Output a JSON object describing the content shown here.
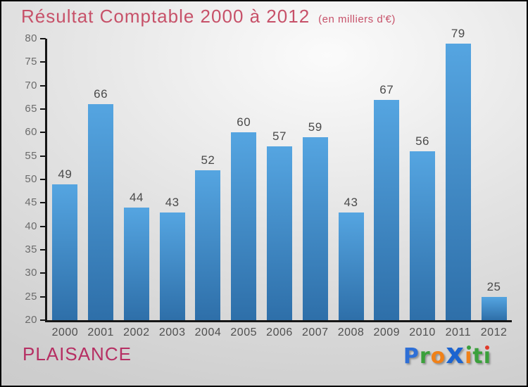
{
  "header": {
    "title": "Résultat Comptable 2000 à 2012",
    "subtitle": "(en milliers d'€)"
  },
  "chart_data": {
    "type": "bar",
    "categories": [
      "2000",
      "2001",
      "2002",
      "2003",
      "2004",
      "2005",
      "2006",
      "2007",
      "2008",
      "2009",
      "2010",
      "2011",
      "2012"
    ],
    "values": [
      49,
      66,
      44,
      43,
      52,
      60,
      57,
      59,
      43,
      67,
      56,
      79,
      25
    ],
    "title": "Résultat Comptable 2000 à 2012",
    "subtitle": "(en milliers d'€)",
    "xlabel": "",
    "ylabel": "",
    "ylim": [
      20,
      80
    ],
    "ytick_step": 5,
    "grid": false,
    "legend": "none",
    "value_labels_shown": true,
    "bar_gradient_top": "#55a5e1",
    "bar_gradient_bottom": "#2e6fa9"
  },
  "footer": {
    "location": "PLAISANCE",
    "logo": {
      "name": "Proxiti",
      "letters": [
        {
          "ch": "P",
          "color": "#2e6fd6"
        },
        {
          "ch": "r",
          "color": "#3ba03c"
        },
        {
          "ch": "o",
          "color": "#f08119"
        },
        {
          "ch": "x",
          "color": "#1c64d0",
          "big": true
        },
        {
          "ch": "i",
          "color": "#f08119",
          "dot": "#3ba03c"
        },
        {
          "ch": "t",
          "color": "#3ba03c"
        },
        {
          "ch": "i",
          "color": "#3ba03c",
          "dot": "#e03a2a"
        }
      ]
    }
  },
  "colors": {
    "title": "#c75169",
    "location": "#b62f63",
    "axis": "#161616",
    "y_tick_label": "#6b6b6b",
    "value_label": "#4a4a4a",
    "x_tick_label": "#4f4f4f"
  }
}
